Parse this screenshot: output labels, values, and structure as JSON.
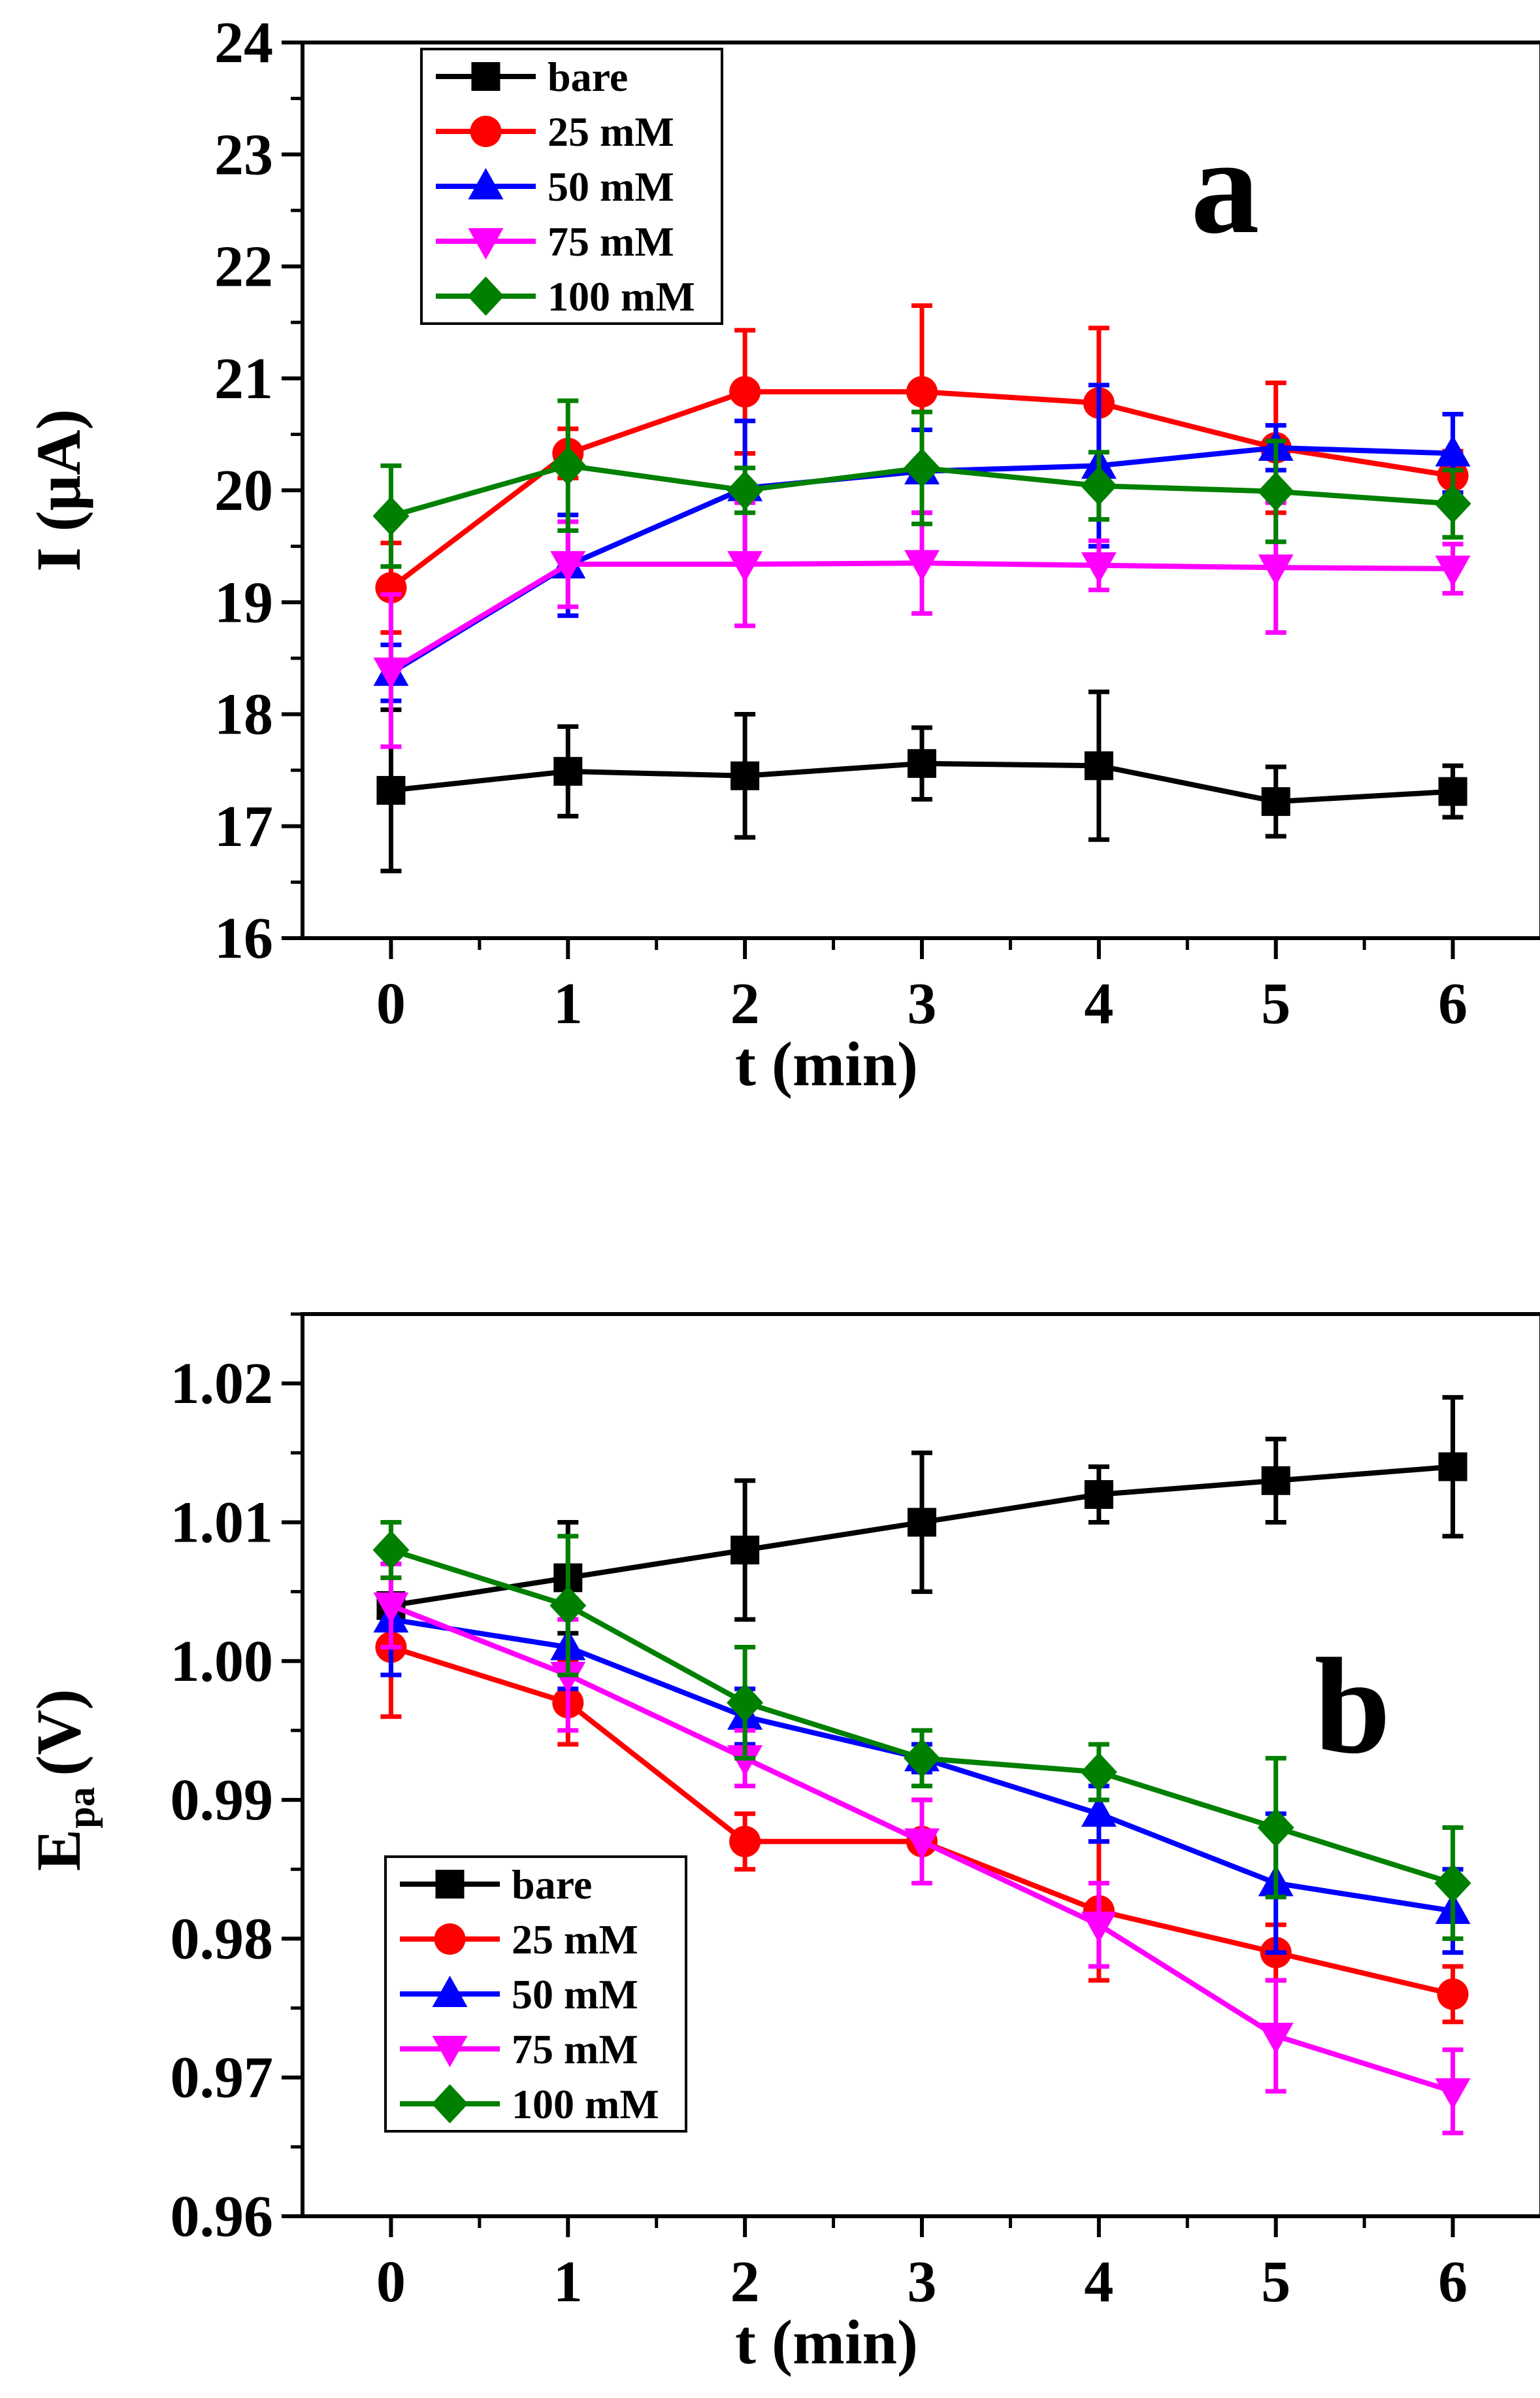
{
  "chart_data": [
    {
      "type": "line",
      "panel_label": "a",
      "xlabel": "t (min)",
      "ylabel": "I (μA)",
      "x": [
        0,
        1,
        2,
        3,
        4,
        5,
        6
      ],
      "x_ticks": [
        "0",
        "1",
        "2",
        "3",
        "4",
        "5",
        "6"
      ],
      "xlim": [
        -0.5,
        6.5
      ],
      "ylim": [
        16,
        24
      ],
      "y_ticks": [
        "16",
        "17",
        "18",
        "19",
        "20",
        "21",
        "22",
        "23",
        "24"
      ],
      "legend_position": "top-left",
      "series": [
        {
          "name": "bare",
          "color": "#000000",
          "marker": "square",
          "values": [
            17.32,
            17.49,
            17.45,
            17.56,
            17.54,
            17.22,
            17.31
          ],
          "errors": [
            0.72,
            0.4,
            0.55,
            0.32,
            0.66,
            0.31,
            0.23
          ]
        },
        {
          "name": "25 mM",
          "color": "#ff0000",
          "marker": "circle",
          "values": [
            19.13,
            20.33,
            20.88,
            20.88,
            20.78,
            20.38,
            20.13
          ],
          "errors": [
            0.4,
            0.22,
            0.55,
            0.77,
            0.67,
            0.58,
            0.22
          ]
        },
        {
          "name": "50 mM",
          "color": "#0000ff",
          "marker": "triangle-up",
          "values": [
            18.37,
            19.33,
            20.02,
            20.17,
            20.22,
            20.38,
            20.33
          ],
          "errors": [
            0.25,
            0.45,
            0.6,
            0.37,
            0.72,
            0.2,
            0.35
          ]
        },
        {
          "name": "75 mM",
          "color": "#ff00ff",
          "marker": "triangle-down",
          "values": [
            18.39,
            19.34,
            19.34,
            19.35,
            19.33,
            19.31,
            19.3
          ],
          "errors": [
            0.68,
            0.38,
            0.55,
            0.45,
            0.22,
            0.58,
            0.22
          ]
        },
        {
          "name": "100 mM",
          "color": "#008000",
          "marker": "diamond",
          "values": [
            19.77,
            20.22,
            20.0,
            20.2,
            20.04,
            19.99,
            19.88
          ],
          "errors": [
            0.45,
            0.58,
            0.2,
            0.5,
            0.3,
            0.45,
            0.3
          ]
        }
      ]
    },
    {
      "type": "line",
      "panel_label": "b",
      "xlabel": "t (min)",
      "ylabel_main": "E",
      "ylabel_sub": "pa",
      "ylabel_unit": "(V)",
      "x": [
        0,
        1,
        2,
        3,
        4,
        5,
        6
      ],
      "x_ticks": [
        "0",
        "1",
        "2",
        "3",
        "4",
        "5",
        "6"
      ],
      "xlim": [
        -0.5,
        6.5
      ],
      "ylim": [
        0.96,
        1.025
      ],
      "y_ticks": [
        "0.96",
        "0.97",
        "0.98",
        "0.99",
        "1.00",
        "1.01",
        "1.02"
      ],
      "legend_position": "bottom-left",
      "series": [
        {
          "name": "bare",
          "color": "#000000",
          "marker": "square",
          "values": [
            1.004,
            1.006,
            1.008,
            1.01,
            1.012,
            1.013,
            1.014
          ],
          "errors": [
            0.0,
            0.004,
            0.005,
            0.005,
            0.002,
            0.003,
            0.005
          ]
        },
        {
          "name": "25 mM",
          "color": "#ff0000",
          "marker": "circle",
          "values": [
            1.001,
            0.997,
            0.987,
            0.987,
            0.982,
            0.979,
            0.976
          ],
          "errors": [
            0.005,
            0.003,
            0.002,
            0.003,
            0.005,
            0.002,
            0.002
          ]
        },
        {
          "name": "50 mM",
          "color": "#0000ff",
          "marker": "triangle-up",
          "values": [
            1.003,
            1.001,
            0.996,
            0.993,
            0.989,
            0.984,
            0.982
          ],
          "errors": [
            0.004,
            0.003,
            0.002,
            0.001,
            0.002,
            0.005,
            0.003
          ]
        },
        {
          "name": "75 mM",
          "color": "#ff00ff",
          "marker": "triangle-down",
          "values": [
            1.004,
            0.999,
            0.993,
            0.987,
            0.981,
            0.973,
            0.969
          ],
          "errors": [
            0.003,
            0.004,
            0.002,
            0.003,
            0.003,
            0.004,
            0.003
          ]
        },
        {
          "name": "100 mM",
          "color": "#008000",
          "marker": "diamond",
          "values": [
            1.008,
            1.004,
            0.997,
            0.993,
            0.992,
            0.988,
            0.984
          ],
          "errors": [
            0.002,
            0.005,
            0.004,
            0.002,
            0.002,
            0.005,
            0.004
          ]
        }
      ]
    }
  ]
}
